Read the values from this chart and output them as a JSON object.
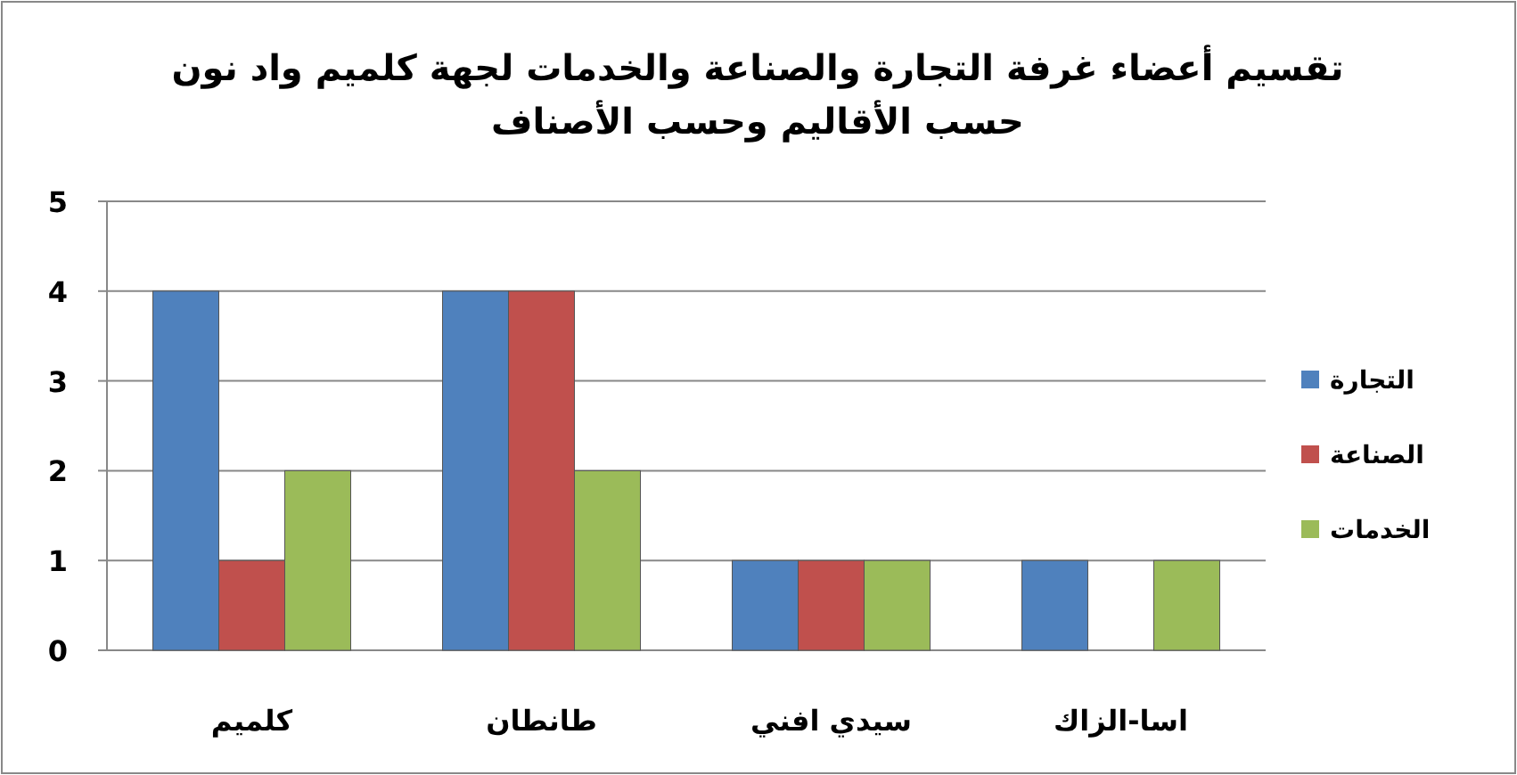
{
  "chart_data": {
    "type": "bar",
    "title": "تقسيم أعضاء غرفة التجارة والصناعة والخدمات لجهة  كلميم واد نون\nحسب الأقاليم وحسب الأصناف",
    "categories": [
      "كلميم",
      "طانطان",
      "سيدي افني",
      "اسا-الزاك"
    ],
    "series": [
      {
        "name": "التجارة",
        "color": "#4f81bd",
        "values": [
          4,
          4,
          1,
          1
        ]
      },
      {
        "name": "الصناعة",
        "color": "#c0504d",
        "values": [
          1,
          4,
          1,
          0
        ]
      },
      {
        "name": "الخدمات",
        "color": "#9bbb59",
        "values": [
          2,
          2,
          1,
          1
        ]
      }
    ],
    "ylim": [
      0,
      5
    ],
    "yticks": [
      0,
      1,
      2,
      3,
      4,
      5
    ],
    "grid": "y",
    "legend": "right"
  }
}
